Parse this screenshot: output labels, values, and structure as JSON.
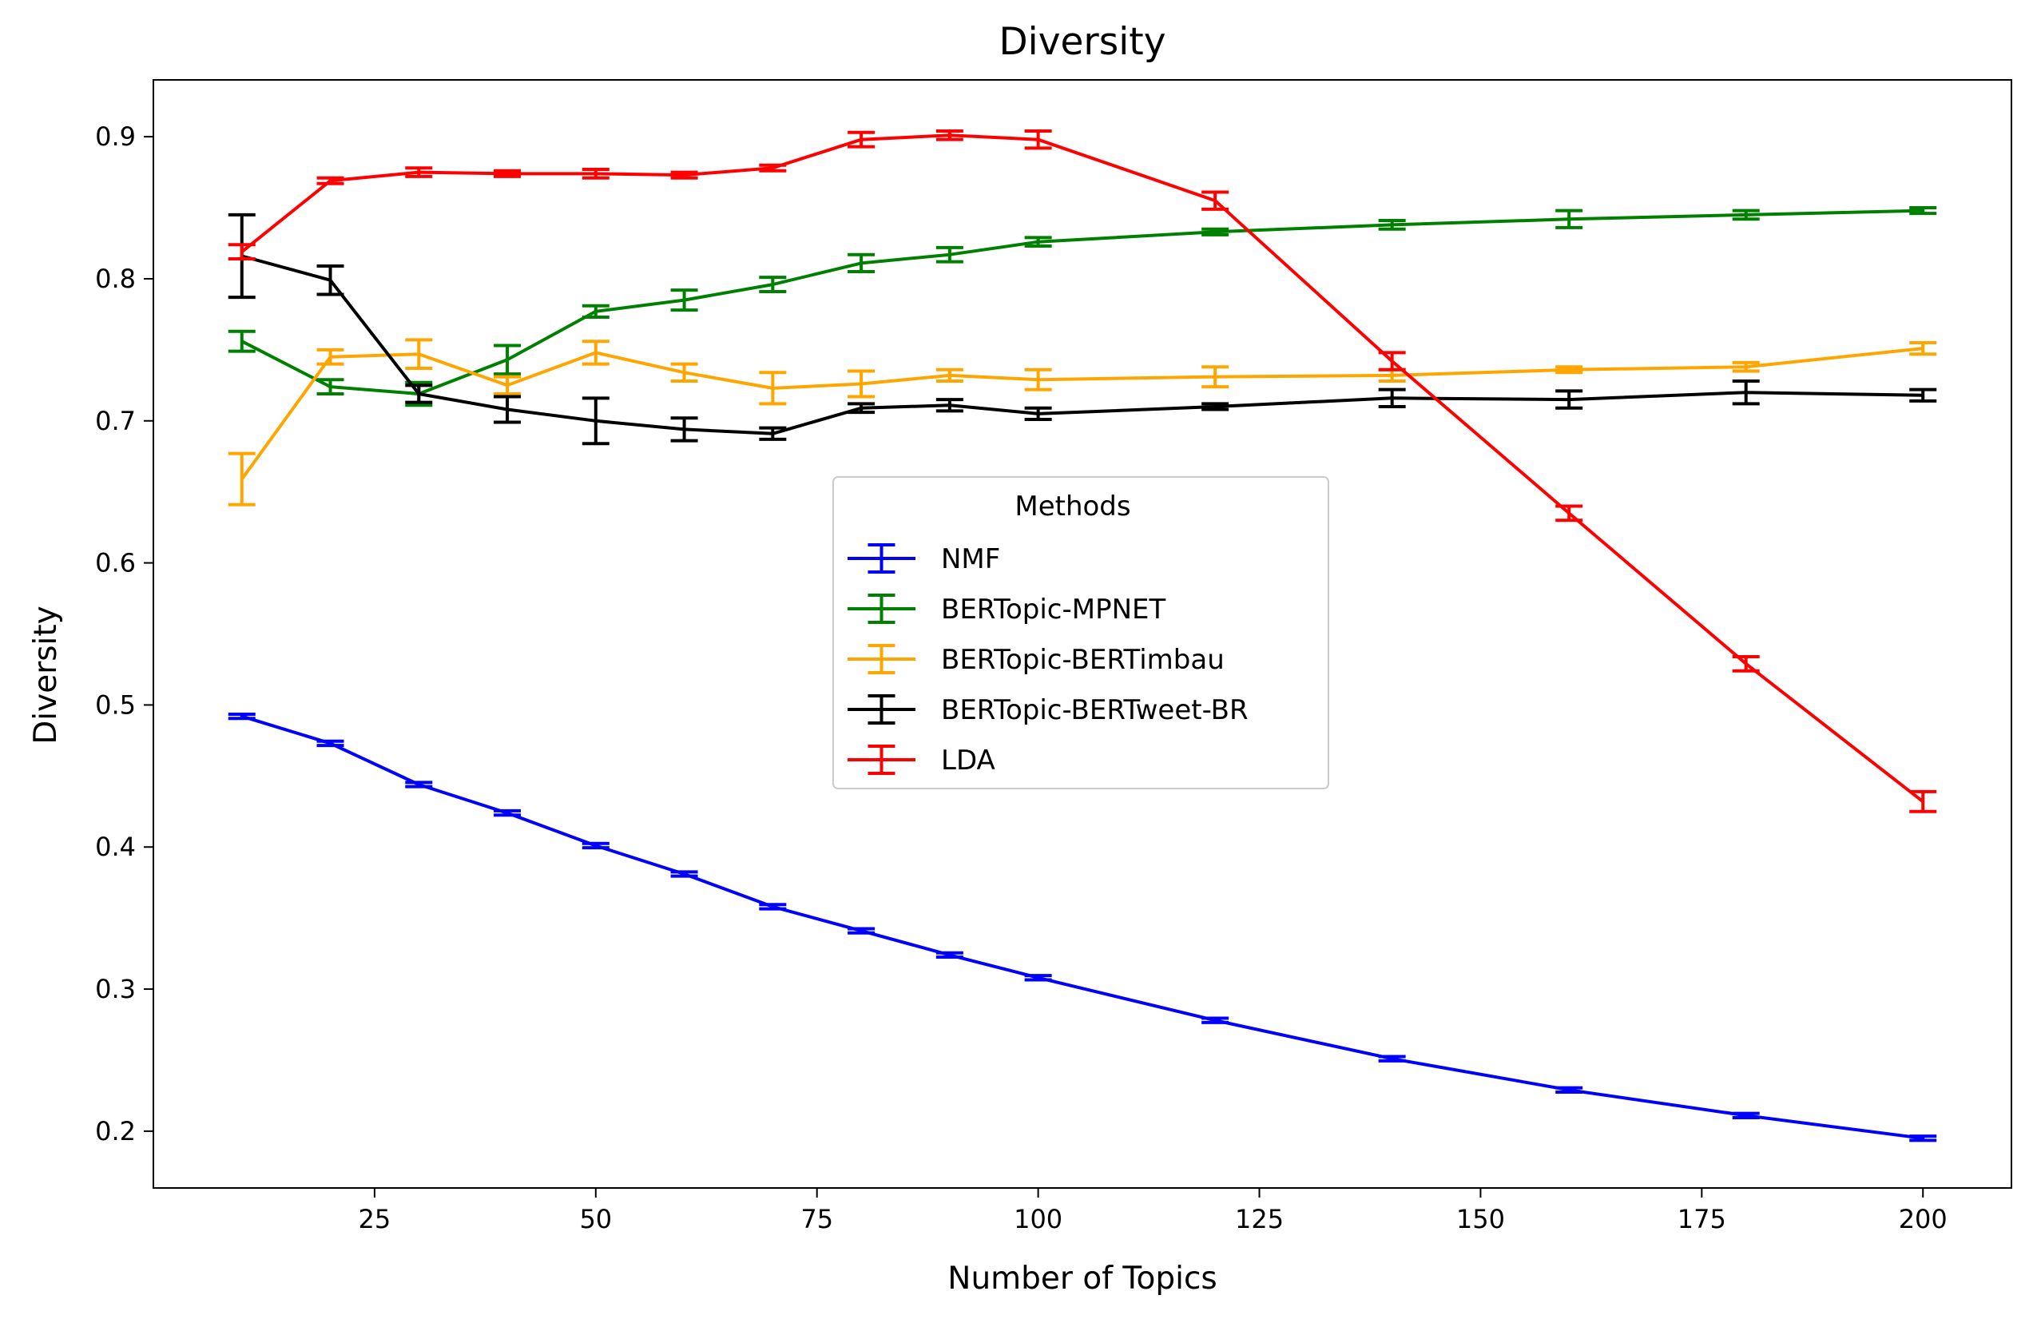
{
  "chart_data": {
    "type": "line",
    "title": "Diversity",
    "xlabel": "Number of Topics",
    "ylabel": "Diversity",
    "xlim": [
      0,
      210
    ],
    "ylim": [
      0.16,
      0.94
    ],
    "xticks": [
      25,
      50,
      75,
      100,
      125,
      150,
      175,
      200
    ],
    "yticks": [
      0.2,
      0.3,
      0.4,
      0.5,
      0.6,
      0.7,
      0.8,
      0.9
    ],
    "xtick_labels": [
      "25",
      "50",
      "75",
      "100",
      "125",
      "150",
      "175",
      "200"
    ],
    "ytick_labels": [
      "0.2",
      "0.3",
      "0.4",
      "0.5",
      "0.6",
      "0.7",
      "0.8",
      "0.9"
    ],
    "grid": false,
    "legend": {
      "title": "Methods",
      "placement": "center"
    },
    "x": [
      10,
      20,
      30,
      40,
      50,
      60,
      70,
      80,
      90,
      100,
      120,
      140,
      160,
      180,
      200
    ],
    "series": [
      {
        "name": "NMF",
        "color": "#0000ff",
        "values": [
          0.492,
          0.473,
          0.444,
          0.424,
          0.401,
          0.381,
          0.358,
          0.341,
          0.324,
          0.308,
          0.278,
          0.251,
          0.229,
          0.211,
          0.195
        ],
        "errors": [
          0.001,
          0.001,
          0.001,
          0.001,
          0.001,
          0.001,
          0.001,
          0.001,
          0.001,
          0.001,
          0.001,
          0.001,
          0.001,
          0.001,
          0.001
        ]
      },
      {
        "name": "BERTopic-MPNET",
        "color": "#008000",
        "values": [
          0.756,
          0.724,
          0.719,
          0.743,
          0.777,
          0.785,
          0.796,
          0.811,
          0.817,
          0.826,
          0.833,
          0.838,
          0.842,
          0.845,
          0.848
        ],
        "errors": [
          0.007,
          0.005,
          0.008,
          0.01,
          0.004,
          0.007,
          0.005,
          0.006,
          0.005,
          0.003,
          0.002,
          0.003,
          0.006,
          0.003,
          0.002
        ]
      },
      {
        "name": "BERTopic-BERTimbau",
        "color": "#ffa500",
        "values": [
          0.659,
          0.745,
          0.747,
          0.725,
          0.748,
          0.734,
          0.723,
          0.726,
          0.732,
          0.729,
          0.731,
          0.732,
          0.736,
          0.738,
          0.751
        ],
        "errors": [
          0.018,
          0.005,
          0.01,
          0.006,
          0.008,
          0.006,
          0.011,
          0.009,
          0.004,
          0.007,
          0.007,
          0.004,
          0.002,
          0.003,
          0.004
        ]
      },
      {
        "name": "BERTopic-BERTweet-BR",
        "color": "#000000",
        "values": [
          0.816,
          0.799,
          0.719,
          0.708,
          0.7,
          0.694,
          0.691,
          0.709,
          0.711,
          0.705,
          0.71,
          0.716,
          0.715,
          0.72,
          0.718
        ],
        "errors": [
          0.029,
          0.01,
          0.006,
          0.009,
          0.016,
          0.008,
          0.004,
          0.003,
          0.004,
          0.004,
          0.002,
          0.006,
          0.006,
          0.008,
          0.004
        ]
      },
      {
        "name": "LDA",
        "color": "#ff0000",
        "values": [
          0.819,
          0.869,
          0.875,
          0.874,
          0.874,
          0.873,
          0.878,
          0.898,
          0.901,
          0.898,
          0.855,
          0.742,
          0.635,
          0.529,
          0.432
        ],
        "errors": [
          0.005,
          0.002,
          0.003,
          0.002,
          0.003,
          0.002,
          0.002,
          0.005,
          0.003,
          0.006,
          0.006,
          0.006,
          0.005,
          0.005,
          0.007
        ]
      }
    ]
  }
}
